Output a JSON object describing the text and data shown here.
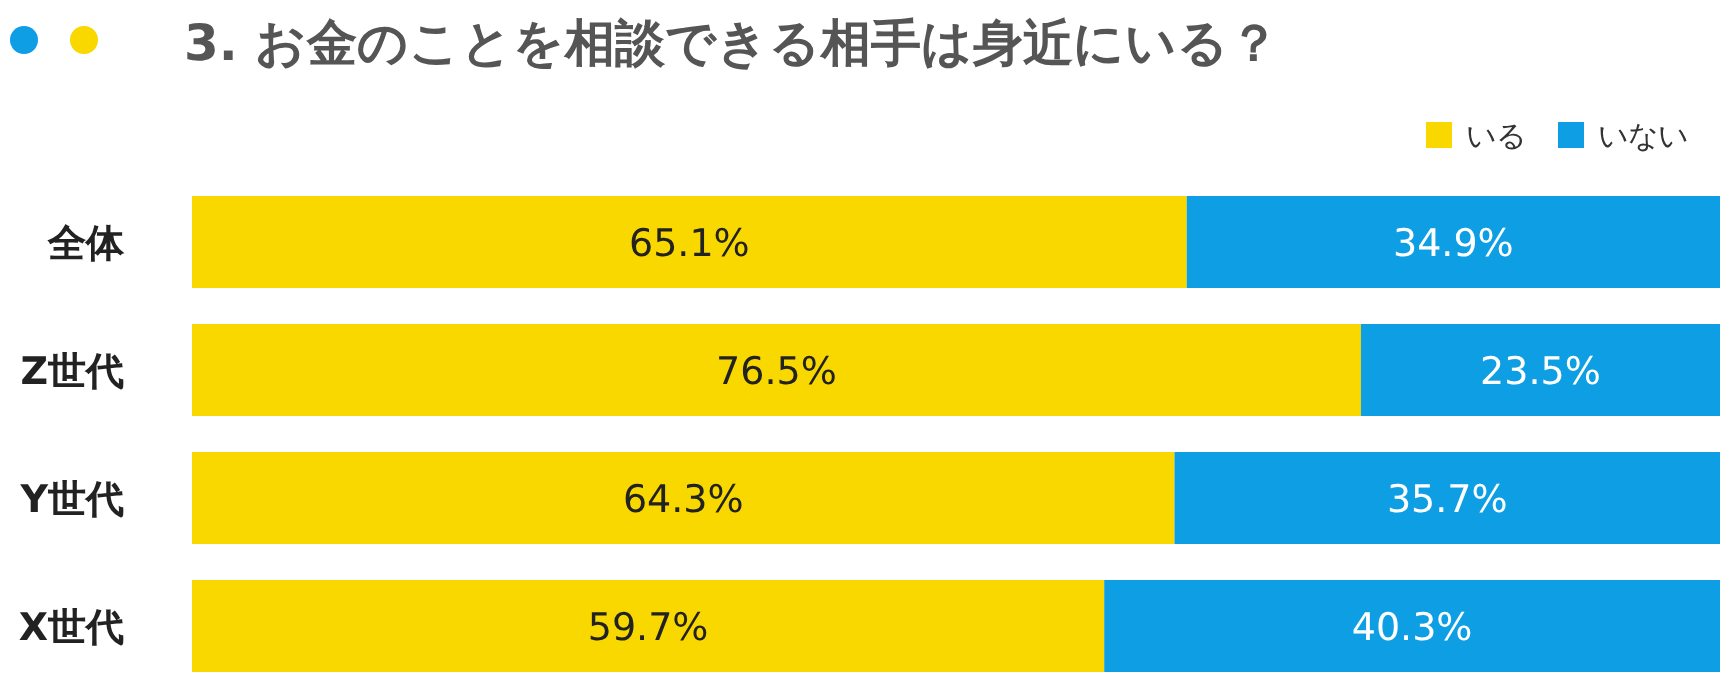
{
  "chart_data": {
    "type": "bar",
    "orientation": "horizontal",
    "stacked": true,
    "title": "3. お金のことを相談できる相手は身近にいる？",
    "categories": [
      "全体",
      "Z世代",
      "Y世代",
      "X世代"
    ],
    "xlim": [
      0,
      100
    ],
    "legend": "top right",
    "series": [
      {
        "name": "いる",
        "color": "#f9d800",
        "values": [
          65.1,
          76.5,
          64.3,
          59.7
        ],
        "value_labels": [
          "65.1%",
          "76.5%",
          "64.3%",
          "59.7%"
        ]
      },
      {
        "name": "いない",
        "color": "#0d9ee3",
        "values": [
          34.9,
          23.5,
          35.7,
          40.3
        ],
        "value_labels": [
          "34.9%",
          "23.5%",
          "35.7%",
          "40.3%"
        ]
      }
    ]
  }
}
